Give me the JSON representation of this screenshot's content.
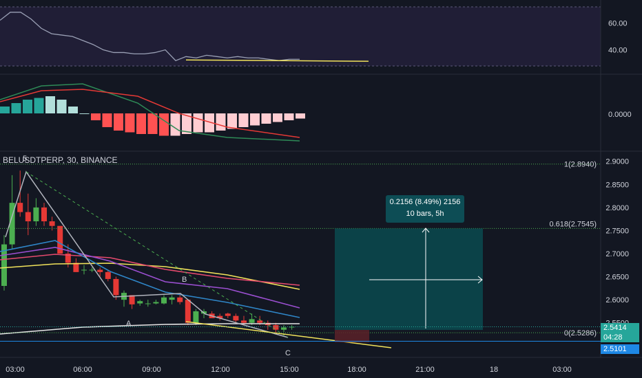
{
  "symbol_line": "BELUSDTPERP, 30, BINANCE",
  "tooltip": {
    "line1": "0.2156 (8.49%) 2156",
    "line2": "10 bars, 5h"
  },
  "price_axis": [
    "2.9000",
    "2.8500",
    "2.8000",
    "2.7500",
    "2.7000",
    "2.6500",
    "2.6000",
    "2.5500"
  ],
  "rsi_axis": [
    "60.00",
    "40.00"
  ],
  "macd_axis": [
    "0.0000"
  ],
  "time_axis": [
    "03:00",
    "06:00",
    "09:00",
    "12:00",
    "15:00",
    "18:00",
    "21:00",
    "18",
    "03:00"
  ],
  "fib": {
    "f1": "1(2.8940)",
    "f618": "0.618(2.7545)",
    "f0": "0(2.5286)"
  },
  "price_label": {
    "last": "2.5414",
    "countdown": "04:28",
    "line": "2.5101"
  },
  "waves": {
    "five": "5",
    "a": "A",
    "b": "B",
    "c": "C"
  },
  "colors": {
    "up": "#4caf50",
    "down": "#e53935",
    "bg": "#131722",
    "fib": "#4caf50",
    "target": "#0b4a4f"
  },
  "chart_data": {
    "type": "candlestick",
    "interval": "30",
    "exchange": "BINANCE",
    "candles": [
      {
        "o": 2.63,
        "h": 2.74,
        "l": 2.62,
        "c": 2.72
      },
      {
        "o": 2.72,
        "h": 2.87,
        "l": 2.71,
        "c": 2.81
      },
      {
        "o": 2.81,
        "h": 2.88,
        "l": 2.78,
        "c": 2.79
      },
      {
        "o": 2.79,
        "h": 2.83,
        "l": 2.74,
        "c": 2.77
      },
      {
        "o": 2.77,
        "h": 2.82,
        "l": 2.76,
        "c": 2.8
      },
      {
        "o": 2.8,
        "h": 2.81,
        "l": 2.76,
        "c": 2.77
      },
      {
        "o": 2.77,
        "h": 2.78,
        "l": 2.75,
        "c": 2.76
      },
      {
        "o": 2.76,
        "h": 2.76,
        "l": 2.7,
        "c": 2.7
      },
      {
        "o": 2.7,
        "h": 2.72,
        "l": 2.67,
        "c": 2.68
      },
      {
        "o": 2.68,
        "h": 2.69,
        "l": 2.66,
        "c": 2.66
      },
      {
        "o": 2.665,
        "h": 2.675,
        "l": 2.655,
        "c": 2.665
      },
      {
        "o": 2.665,
        "h": 2.67,
        "l": 2.66,
        "c": 2.665
      },
      {
        "o": 2.665,
        "h": 2.67,
        "l": 2.65,
        "c": 2.66
      },
      {
        "o": 2.66,
        "h": 2.665,
        "l": 2.64,
        "c": 2.645
      },
      {
        "o": 2.645,
        "h": 2.65,
        "l": 2.6,
        "c": 2.61
      },
      {
        "o": 2.6,
        "h": 2.62,
        "l": 2.585,
        "c": 2.615
      },
      {
        "o": 2.61,
        "h": 2.61,
        "l": 2.58,
        "c": 2.59
      },
      {
        "o": 2.592,
        "h": 2.6,
        "l": 2.587,
        "c": 2.597
      },
      {
        "o": 2.592,
        "h": 2.6,
        "l": 2.585,
        "c": 2.592
      },
      {
        "o": 2.592,
        "h": 2.6,
        "l": 2.59,
        "c": 2.595
      },
      {
        "o": 2.592,
        "h": 2.61,
        "l": 2.59,
        "c": 2.605
      },
      {
        "o": 2.6,
        "h": 2.61,
        "l": 2.59,
        "c": 2.605
      },
      {
        "o": 2.605,
        "h": 2.61,
        "l": 2.59,
        "c": 2.595
      },
      {
        "o": 2.6,
        "h": 2.6,
        "l": 2.545,
        "c": 2.55
      },
      {
        "o": 2.55,
        "h": 2.58,
        "l": 2.545,
        "c": 2.575
      },
      {
        "o": 2.57,
        "h": 2.58,
        "l": 2.56,
        "c": 2.575
      },
      {
        "o": 2.57,
        "h": 2.575,
        "l": 2.56,
        "c": 2.56
      },
      {
        "o": 2.565,
        "h": 2.57,
        "l": 2.555,
        "c": 2.56
      },
      {
        "o": 2.57,
        "h": 2.572,
        "l": 2.56,
        "c": 2.565
      },
      {
        "o": 2.565,
        "h": 2.57,
        "l": 2.55,
        "c": 2.555
      },
      {
        "o": 2.555,
        "h": 2.565,
        "l": 2.545,
        "c": 2.55
      },
      {
        "o": 2.55,
        "h": 2.57,
        "l": 2.545,
        "c": 2.558
      },
      {
        "o": 2.555,
        "h": 2.565,
        "l": 2.545,
        "c": 2.55
      },
      {
        "o": 2.55,
        "h": 2.555,
        "l": 2.535,
        "c": 2.545
      },
      {
        "o": 2.545,
        "h": 2.55,
        "l": 2.525,
        "c": 2.535
      },
      {
        "o": 2.535,
        "h": 2.545,
        "l": 2.53,
        "c": 2.54
      },
      {
        "o": 2.54,
        "h": 2.545,
        "l": 2.535,
        "c": 2.5414
      }
    ],
    "rsi": [
      62,
      68,
      68,
      63,
      56,
      52,
      51,
      50,
      47,
      44,
      40,
      38,
      38,
      37,
      37,
      38,
      40,
      32,
      35,
      34,
      36,
      35,
      34,
      35,
      34,
      34,
      33,
      32,
      33,
      33
    ],
    "rsi_trend": [
      [
        32.5,
        31.5
      ]
    ],
    "macd_hist": [
      0.02,
      0.03,
      0.04,
      0.045,
      0.05,
      0.04,
      0.02,
      0.0,
      -0.02,
      -0.04,
      -0.05,
      -0.055,
      -0.06,
      -0.06,
      -0.065,
      -0.065,
      -0.06,
      -0.055,
      -0.055,
      -0.05,
      -0.045,
      -0.04,
      -0.035,
      -0.03,
      -0.025,
      -0.02,
      -0.015
    ],
    "ylim": [
      2.49,
      2.91
    ],
    "fib_levels": [
      {
        "label": "1",
        "value": 2.894
      },
      {
        "label": "0.618",
        "value": 2.7545
      },
      {
        "label": "0",
        "value": 2.5286
      }
    ],
    "last_price": 2.5414,
    "price_line": 2.5101,
    "measure": {
      "change": 0.2156,
      "percent": 8.49,
      "bars": 10,
      "duration": "5h"
    }
  }
}
